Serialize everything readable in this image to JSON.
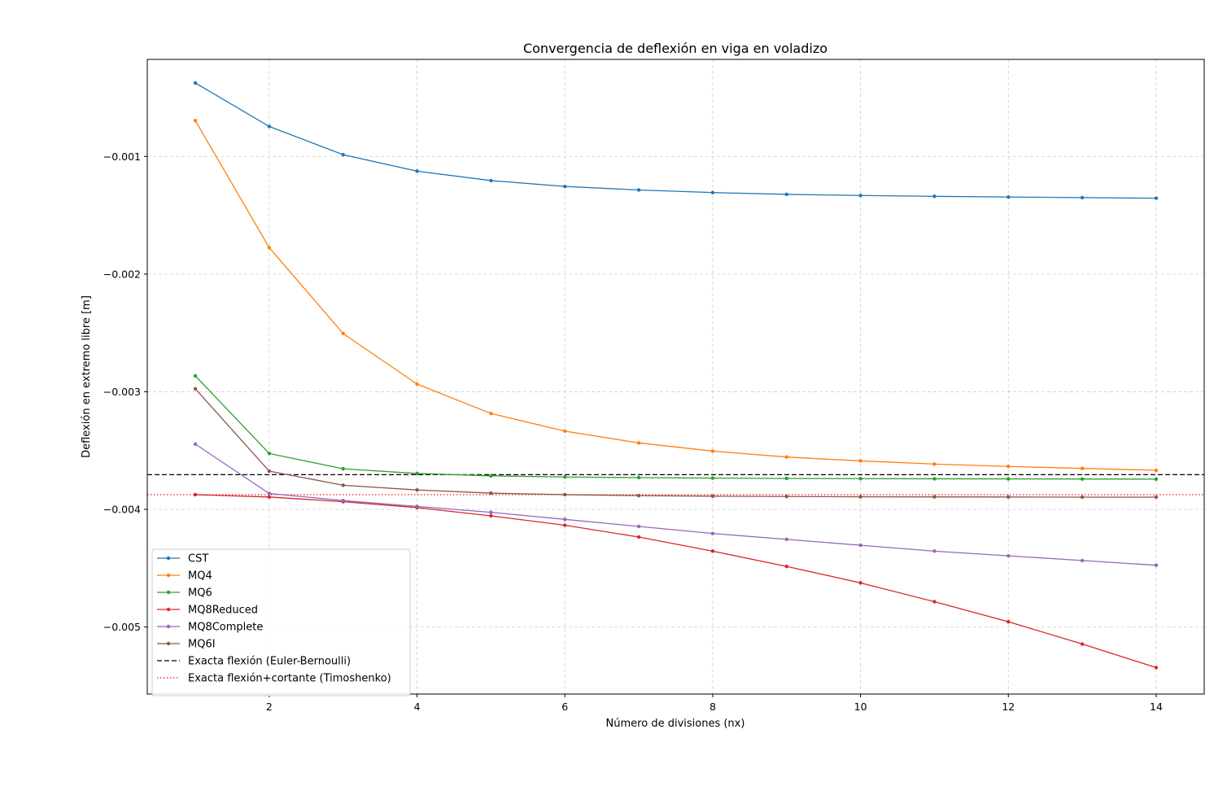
{
  "chart_data": {
    "type": "line",
    "title": "Convergencia de deflexión en viga en voladizo",
    "xlabel": "Número de divisiones (nx)",
    "ylabel": "Deflexión en extremo libre [m]",
    "xlim": [
      0.35,
      14.65
    ],
    "ylim": [
      -0.00557,
      -0.000175
    ],
    "xticks": [
      2,
      4,
      6,
      8,
      10,
      12,
      14
    ],
    "yticks": [
      -0.001,
      -0.002,
      -0.003,
      -0.004,
      -0.005
    ],
    "ytick_labels": [
      "−0.001",
      "−0.002",
      "−0.003",
      "−0.004",
      "−0.005"
    ],
    "grid": true,
    "legend_position": "lower-left",
    "x": [
      1,
      2,
      3,
      4,
      5,
      6,
      7,
      8,
      9,
      10,
      11,
      12,
      13,
      14
    ],
    "series": [
      {
        "name": "CST",
        "color": "#1f77b4",
        "values": [
          -0.000375,
          -0.000745,
          -0.000985,
          -0.001125,
          -0.001205,
          -0.001255,
          -0.001285,
          -0.001307,
          -0.001322,
          -0.001332,
          -0.001339,
          -0.001345,
          -0.00135,
          -0.001355
        ]
      },
      {
        "name": "MQ4",
        "color": "#ff7f0e",
        "values": [
          -0.000695,
          -0.001775,
          -0.002505,
          -0.002935,
          -0.003185,
          -0.003335,
          -0.003435,
          -0.003505,
          -0.003555,
          -0.003588,
          -0.003615,
          -0.003635,
          -0.003652,
          -0.003668
        ]
      },
      {
        "name": "MQ6",
        "color": "#2ca02c",
        "values": [
          -0.002865,
          -0.003525,
          -0.003655,
          -0.003695,
          -0.003715,
          -0.003725,
          -0.00373,
          -0.003734,
          -0.003737,
          -0.003739,
          -0.00374,
          -0.003741,
          -0.003742,
          -0.003743
        ]
      },
      {
        "name": "MQ8Reduced",
        "color": "#d62728",
        "values": [
          -0.003875,
          -0.003895,
          -0.003935,
          -0.003985,
          -0.004055,
          -0.004135,
          -0.004235,
          -0.004355,
          -0.004485,
          -0.004625,
          -0.004785,
          -0.004955,
          -0.005145,
          -0.005345
        ]
      },
      {
        "name": "MQ8Complete",
        "color": "#9467bd",
        "values": [
          -0.003445,
          -0.003865,
          -0.003925,
          -0.003975,
          -0.004025,
          -0.004085,
          -0.004145,
          -0.004205,
          -0.004255,
          -0.004305,
          -0.004355,
          -0.004395,
          -0.004435,
          -0.004475
        ]
      },
      {
        "name": "MQ6I",
        "color": "#8c564b",
        "values": [
          -0.002975,
          -0.003675,
          -0.003795,
          -0.003835,
          -0.003862,
          -0.003875,
          -0.003883,
          -0.003888,
          -0.003891,
          -0.003893,
          -0.003894,
          -0.003895,
          -0.003896,
          -0.003896
        ]
      }
    ],
    "reference_lines": [
      {
        "name": "Exacta flexión (Euler-Bernoulli)",
        "value": -0.003705,
        "color": "#000000",
        "style": "dashed"
      },
      {
        "name": "Exacta flexión+cortante (Timoshenko)",
        "value": -0.003875,
        "color": "#ff0000",
        "style": "dotted"
      }
    ]
  }
}
